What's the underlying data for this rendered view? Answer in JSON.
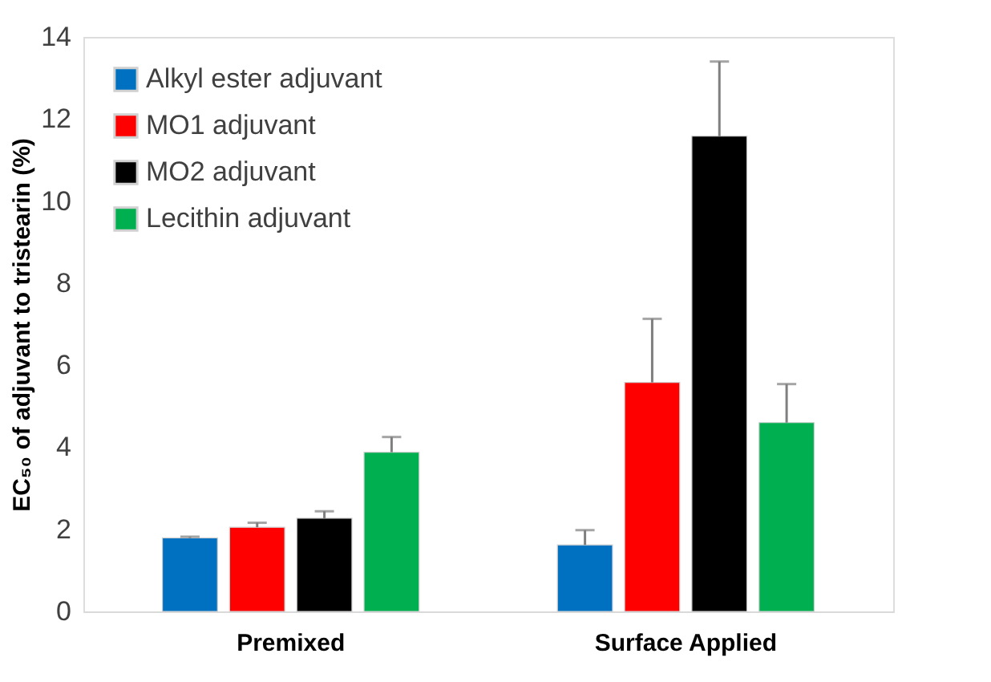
{
  "chart_data": {
    "type": "bar",
    "ylabel": "EC₅₀ of adjuvant to tristearin (%)",
    "categories": [
      "Premixed",
      "Surface Applied"
    ],
    "series": [
      {
        "name": "Alkyl ester adjuvant",
        "color": "#0070c0",
        "values": [
          1.79,
          1.62
        ],
        "errors": [
          [
            1.79,
            1.82
          ],
          [
            1.62,
            1.98
          ]
        ]
      },
      {
        "name": "MO1 adjuvant",
        "color": "#ff0000",
        "values": [
          2.05,
          5.58
        ],
        "errors": [
          [
            2.05,
            2.16
          ],
          [
            5.58,
            7.13
          ]
        ]
      },
      {
        "name": "MO2 adjuvant",
        "color": "#000000",
        "values": [
          2.27,
          11.58
        ],
        "errors": [
          [
            2.27,
            2.44
          ],
          [
            11.58,
            13.4
          ]
        ]
      },
      {
        "name": "Lecithin adjuvant",
        "color": "#00b050",
        "values": [
          3.88,
          4.6
        ],
        "errors": [
          [
            3.88,
            4.25
          ],
          [
            4.6,
            5.54
          ]
        ]
      }
    ],
    "ylim": [
      0,
      14
    ],
    "yticks": [
      0,
      2,
      4,
      6,
      8,
      10,
      12,
      14
    ],
    "grid": false,
    "legend": "top left"
  }
}
